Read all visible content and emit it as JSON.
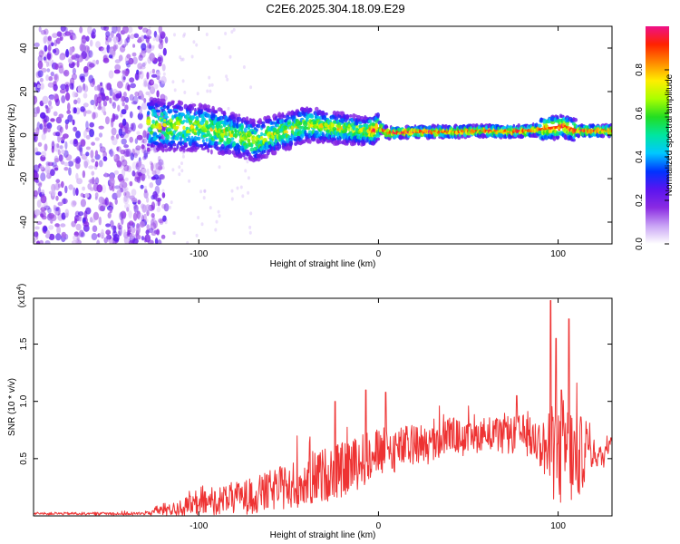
{
  "title": "C2E6.2025.304.18.09.E29",
  "chart_data": [
    {
      "type": "heatmap",
      "name": "spectrogram",
      "xlabel": "Height of straight line (km)",
      "ylabel": "Frequency (Hz)",
      "xlim": [
        -192,
        130
      ],
      "ylim": [
        -50,
        50
      ],
      "xticks": [
        -100,
        0,
        100
      ],
      "yticks": [
        -40,
        -20,
        0,
        20,
        40
      ],
      "ridge": {
        "x": [
          -128,
          -110,
          -95,
          -85,
          -75,
          -68,
          -60,
          -50,
          -40,
          -30,
          -20,
          -10,
          -3,
          0,
          5,
          20,
          40,
          58,
          70,
          85,
          93,
          103,
          110,
          130
        ],
        "freq": [
          5,
          4,
          3,
          1,
          -1,
          -3,
          0,
          2,
          5,
          4,
          3,
          2,
          2,
          4,
          1,
          1.5,
          1.5,
          2,
          1.5,
          2,
          3,
          4,
          2,
          2
        ]
      },
      "noise_region_x": [
        -192,
        -128
      ],
      "colorbar": {
        "label": "Normalized spectral amplitude",
        "range": [
          0,
          1
        ],
        "ticks": [
          "0.0",
          "0.2",
          "0.4",
          "0.6",
          "0.8"
        ],
        "colormap": [
          "#ffffff",
          "#c9a4f5",
          "#8a2be2",
          "#5a14f0",
          "#0033ff",
          "#00c8ff",
          "#00e6a0",
          "#22dd22",
          "#aaff00",
          "#ffee00",
          "#ff8800",
          "#ff2200",
          "#ee1188"
        ]
      }
    },
    {
      "type": "line",
      "name": "snr",
      "xlabel": "Height of straight line (km)",
      "ylabel": "SNR (10 * v/v)",
      "multiplier_mantissa": "(x10",
      "multiplier_exponent": "4",
      "multiplier_close": ")",
      "xlim": [
        -192,
        130
      ],
      "ylim": [
        0,
        1.9
      ],
      "xticks": [
        -100,
        0,
        100
      ],
      "yticks": [
        "0.5",
        "1.0",
        "1.5"
      ],
      "line_color": "#ee3333",
      "envelope": {
        "x": [
          -192,
          -130,
          -122,
          -110,
          -100,
          -90,
          -80,
          -70,
          -60,
          -50,
          -40,
          -30,
          -20,
          -10,
          0,
          10,
          20,
          30,
          40,
          50,
          60,
          70,
          80,
          90,
          95,
          100,
          105,
          110,
          115,
          120,
          125,
          130
        ],
        "mean": [
          0.02,
          0.02,
          0.05,
          0.07,
          0.1,
          0.13,
          0.16,
          0.17,
          0.22,
          0.26,
          0.3,
          0.36,
          0.4,
          0.48,
          0.55,
          0.58,
          0.62,
          0.62,
          0.72,
          0.65,
          0.74,
          0.68,
          0.72,
          0.63,
          0.55,
          0.5,
          0.6,
          0.45,
          0.6,
          0.55,
          0.5,
          0.75
        ],
        "spread": [
          0.01,
          0.015,
          0.05,
          0.08,
          0.1,
          0.12,
          0.14,
          0.16,
          0.18,
          0.2,
          0.22,
          0.24,
          0.24,
          0.24,
          0.22,
          0.2,
          0.18,
          0.18,
          0.16,
          0.15,
          0.14,
          0.16,
          0.17,
          0.2,
          0.35,
          0.45,
          0.5,
          0.4,
          0.3,
          0.12,
          0.1,
          0.1
        ]
      },
      "peaks": [
        [
          96,
          1.88
        ],
        [
          99,
          1.55
        ],
        [
          106,
          1.72
        ],
        [
          102,
          1.1
        ],
        [
          4,
          1.08
        ],
        [
          -24,
          1.0
        ],
        [
          -7,
          1.1
        ],
        [
          77,
          1.05
        ]
      ]
    }
  ]
}
